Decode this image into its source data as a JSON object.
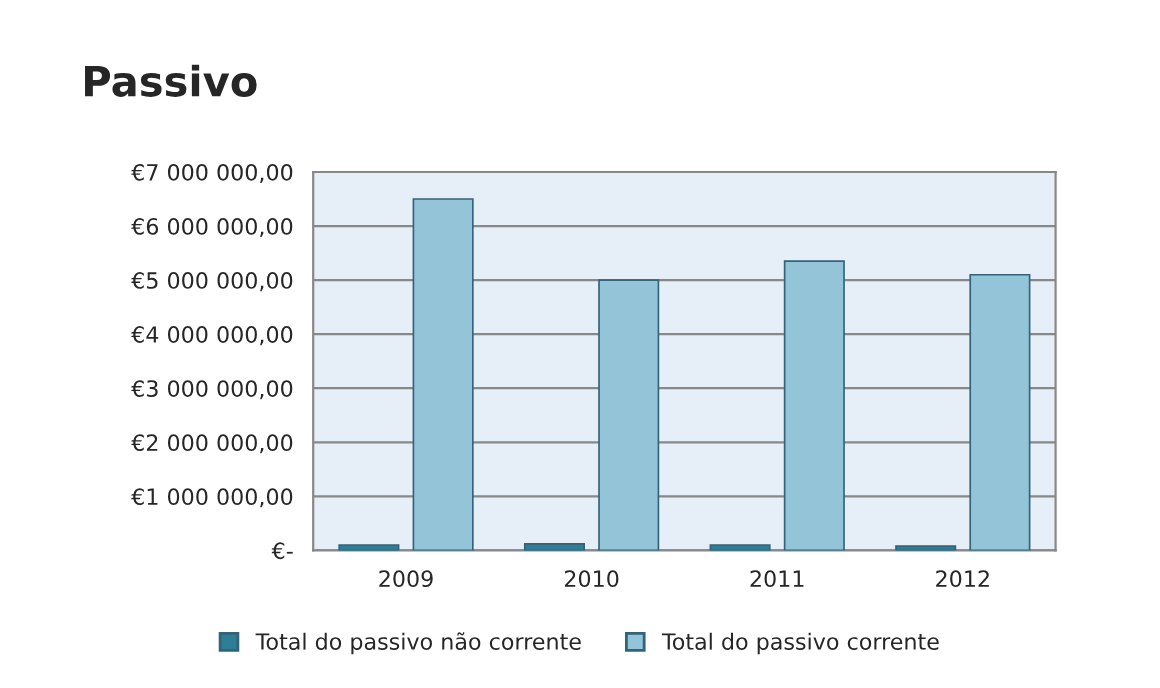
{
  "chart_data": {
    "type": "bar",
    "title": "Passivo",
    "categories": [
      "2009",
      "2010",
      "2011",
      "2012"
    ],
    "series": [
      {
        "name": "Total do passivo não corrente",
        "color": "#2e7f96",
        "values": [
          100000,
          120000,
          100000,
          80000
        ]
      },
      {
        "name": "Total do passivo corrente",
        "color": "#93c4d8",
        "values": [
          6500000,
          5000000,
          5350000,
          5100000
        ]
      }
    ],
    "ylim": [
      0,
      7000000
    ],
    "yticks": [
      {
        "value": 0,
        "label": "€-"
      },
      {
        "value": 1000000,
        "label": "€1 000 000,00"
      },
      {
        "value": 2000000,
        "label": "€2 000 000,00"
      },
      {
        "value": 3000000,
        "label": "€3 000 000,00"
      },
      {
        "value": 4000000,
        "label": "€4 000 000,00"
      },
      {
        "value": 5000000,
        "label": "€5 000 000,00"
      },
      {
        "value": 6000000,
        "label": "€6 000 000,00"
      },
      {
        "value": 7000000,
        "label": "€7 000 000,00"
      }
    ],
    "grid": "y",
    "legend": "bottom"
  }
}
